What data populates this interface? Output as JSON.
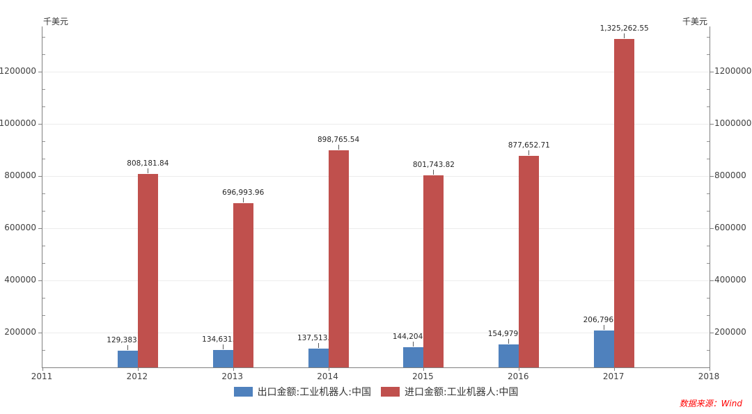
{
  "chart": {
    "unit_left": "千美元",
    "unit_right": "千美元",
    "source_note": "数据来源：Wind"
  },
  "colors": {
    "export_series": "#4f81bd",
    "import_series": "#c0504d",
    "axis_line": "#808080",
    "gridline": "#ececec",
    "tick_label": "#404040",
    "value_label": "#262626",
    "source_note": "#ff0000"
  },
  "legend": {
    "items": [
      {
        "key": "export",
        "label": "出口金额:工业机器人:中国",
        "color": "#4f81bd"
      },
      {
        "key": "import",
        "label": "进口金额:工业机器人:中国",
        "color": "#c0504d"
      }
    ]
  },
  "chart_data": {
    "type": "bar",
    "title": "",
    "ylabel": "千美元",
    "categories": [
      2012,
      2013,
      2014,
      2015,
      2016,
      2017
    ],
    "x_axis_ticks": [
      "2011",
      "2012",
      "2013",
      "2014",
      "2015",
      "2016",
      "2017",
      "2018"
    ],
    "x_range": [
      2011,
      2018
    ],
    "series": [
      {
        "key": "export",
        "name": "出口金额:工业机器人:中国",
        "color": "#4f81bd",
        "values": [
          129383.36,
          134631.11,
          137513.16,
          144204.3,
          154979.18,
          206796.8
        ],
        "labels": [
          "129,383.36",
          "134,631.11",
          "137,513.16",
          "144,204.30",
          "154,979.18",
          "206,796.80"
        ]
      },
      {
        "key": "import",
        "name": "进口金额:工业机器人:中国",
        "color": "#c0504d",
        "values": [
          808181.84,
          696993.96,
          898765.54,
          801743.82,
          877652.71,
          1325262.55
        ],
        "labels": [
          "808,181.84",
          "696,993.96",
          "898,765.54",
          "801,743.82",
          "877,652.71",
          "1,325,262.55"
        ]
      }
    ],
    "y_ticks": [
      200000,
      400000,
      600000,
      800000,
      1000000,
      1200000
    ],
    "y_minor_divisions": 3,
    "ylim": [
      66666.67,
      1373333.33
    ],
    "grid": "horizontal-major",
    "legend_position": "bottom-center"
  }
}
